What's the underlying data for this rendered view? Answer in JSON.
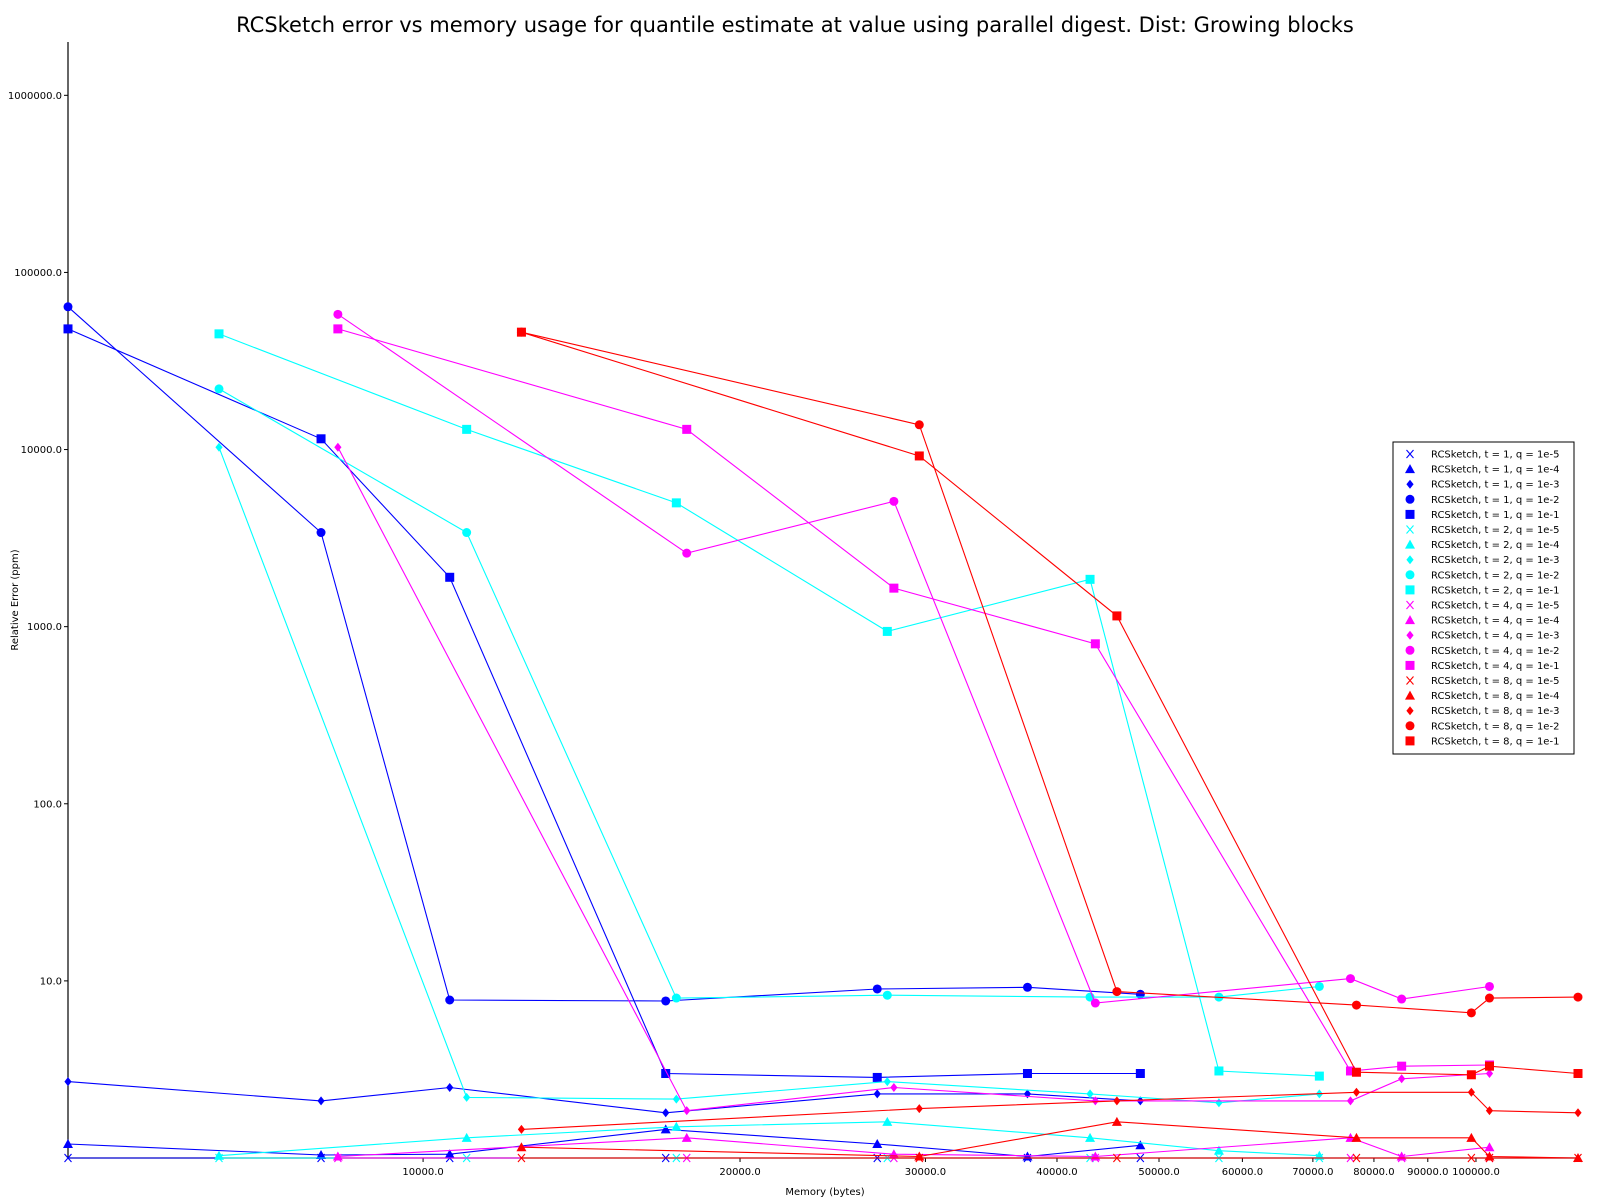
{
  "chart_data": {
    "type": "line",
    "title": "RCSketch error vs memory usage for quantile estimate at value using parallel digest. Dist: Growing blocks",
    "xlabel": "Memory (bytes)",
    "ylabel": "Relative Error (ppm)",
    "xscale": "log",
    "yscale": "log",
    "xlim": [
      4600,
      125000
    ],
    "ylim": [
      1.0,
      2000000
    ],
    "x_ticks": [
      {
        "value": 10000,
        "label": "10000.0"
      },
      {
        "value": 20000,
        "label": "20000.0"
      },
      {
        "value": 30000,
        "label": "30000.0"
      },
      {
        "value": 40000,
        "label": "40000.0"
      },
      {
        "value": 50000,
        "label": "50000.0"
      },
      {
        "value": 60000,
        "label": "60000.0"
      },
      {
        "value": 70000,
        "label": "70000.0"
      },
      {
        "value": 80000,
        "label": "80000.0"
      },
      {
        "value": 90000,
        "label": "90000.0"
      },
      {
        "value": 100000,
        "label": "100000.0"
      }
    ],
    "y_ticks": [
      {
        "value": 10,
        "label": "10.0"
      },
      {
        "value": 100,
        "label": "100.0"
      },
      {
        "value": 1000,
        "label": "1000.0"
      },
      {
        "value": 10000,
        "label": "10000.0"
      },
      {
        "value": 100000,
        "label": "100000.0"
      },
      {
        "value": 1000000,
        "label": "1000000.0"
      }
    ],
    "legend_position": "right",
    "series": [
      {
        "name": "RCSketch, t = 1, q = 1e-5",
        "color": "#0000ff",
        "marker": "x",
        "x": [
          4600,
          8000,
          10600,
          17000,
          27000,
          37500,
          48000
        ],
        "y": [
          1.0,
          1.0,
          1.0,
          1.0,
          1.0,
          1.0,
          1.0
        ]
      },
      {
        "name": "RCSketch, t = 1, q = 1e-4",
        "color": "#0000ff",
        "marker": "triangle",
        "x": [
          4600,
          8000,
          10600,
          17000,
          27000,
          37500,
          48000
        ],
        "y": [
          1.2,
          1.04,
          1.05,
          1.45,
          1.2,
          1.02,
          1.18
        ]
      },
      {
        "name": "RCSketch, t = 1, q = 1e-3",
        "color": "#0000ff",
        "marker": "diamond",
        "x": [
          4600,
          8000,
          10600,
          17000,
          27000,
          37500,
          48000
        ],
        "y": [
          2.7,
          2.1,
          2.5,
          1.8,
          2.3,
          2.3,
          2.1
        ]
      },
      {
        "name": "RCSketch, t = 1, q = 1e-2",
        "color": "#0000ff",
        "marker": "circle",
        "x": [
          4600,
          8000,
          10600,
          17000,
          27000,
          37500,
          48000
        ],
        "y": [
          64000,
          3400,
          7.8,
          7.7,
          9.0,
          9.2,
          8.4
        ]
      },
      {
        "name": "RCSketch, t = 1, q = 1e-1",
        "color": "#0000ff",
        "marker": "square",
        "x": [
          4600,
          8000,
          10600,
          17000,
          27000,
          37500,
          48000
        ],
        "y": [
          48000,
          11500,
          1900,
          3.0,
          2.85,
          3.0,
          3.0
        ]
      },
      {
        "name": "RCSketch, t = 2, q = 1e-5",
        "color": "#00ffff",
        "marker": "x",
        "x": [
          6400,
          11000,
          17400,
          27600,
          43000,
          57000,
          71000
        ],
        "y": [
          1.0,
          1.0,
          1.0,
          1.0,
          1.0,
          1.0,
          1.0
        ]
      },
      {
        "name": "RCSketch, t = 2, q = 1e-4",
        "color": "#00ffff",
        "marker": "triangle",
        "x": [
          6400,
          11000,
          17400,
          27600,
          43000,
          57000,
          71000
        ],
        "y": [
          1.03,
          1.3,
          1.5,
          1.6,
          1.3,
          1.1,
          1.03
        ]
      },
      {
        "name": "RCSketch, t = 2, q = 1e-3",
        "color": "#00ffff",
        "marker": "diamond",
        "x": [
          6400,
          11000,
          17400,
          27600,
          43000,
          57000,
          71000
        ],
        "y": [
          10300,
          2.2,
          2.15,
          2.7,
          2.3,
          2.05,
          2.3
        ]
      },
      {
        "name": "RCSketch, t = 2, q = 1e-2",
        "color": "#00ffff",
        "marker": "circle",
        "x": [
          6400,
          11000,
          17400,
          27600,
          43000,
          57000,
          71000
        ],
        "y": [
          22000,
          3400,
          8.0,
          8.3,
          8.1,
          8.1,
          9.3
        ]
      },
      {
        "name": "RCSketch, t = 2, q = 1e-1",
        "color": "#00ffff",
        "marker": "square",
        "x": [
          6400,
          11000,
          17400,
          27600,
          43000,
          57000,
          71000
        ],
        "y": [
          45000,
          13000,
          5000,
          940,
          1850,
          3.1,
          2.9
        ]
      },
      {
        "name": "RCSketch, t = 4, q = 1e-5",
        "color": "#ff00ff",
        "marker": "x",
        "x": [
          8300,
          17800,
          28000,
          43500,
          76000,
          85000,
          103000
        ],
        "y": [
          1.0,
          1.0,
          1.0,
          1.0,
          1.0,
          1.0,
          1.0
        ]
      },
      {
        "name": "RCSketch, t = 4, q = 1e-4",
        "color": "#ff00ff",
        "marker": "triangle",
        "x": [
          8300,
          17800,
          28000,
          43500,
          76000,
          85000,
          103000
        ],
        "y": [
          1.02,
          1.3,
          1.05,
          1.02,
          1.3,
          1.02,
          1.15
        ]
      },
      {
        "name": "RCSketch, t = 4, q = 1e-3",
        "color": "#ff00ff",
        "marker": "diamond",
        "x": [
          8300,
          17800,
          28000,
          43500,
          76000,
          85000,
          103000
        ],
        "y": [
          10300,
          1.85,
          2.5,
          2.1,
          2.1,
          2.8,
          3.0
        ]
      },
      {
        "name": "RCSketch, t = 4, q = 1e-2",
        "color": "#ff00ff",
        "marker": "circle",
        "x": [
          8300,
          17800,
          28000,
          43500,
          76000,
          85000,
          103000
        ],
        "y": [
          58000,
          2600,
          5100,
          7.5,
          10.3,
          7.9,
          9.3
        ]
      },
      {
        "name": "RCSketch, t = 4, q = 1e-1",
        "color": "#ff00ff",
        "marker": "square",
        "x": [
          8300,
          17800,
          28000,
          43500,
          76000,
          85000,
          103000
        ],
        "y": [
          48000,
          13000,
          1650,
          800,
          3.1,
          3.3,
          3.35
        ]
      },
      {
        "name": "RCSketch, t = 8, q = 1e-5",
        "color": "#ff0000",
        "marker": "x",
        "x": [
          12400,
          29600,
          45600,
          77000,
          99000,
          103000,
          125000
        ],
        "y": [
          1.0,
          1.0,
          1.0,
          1.0,
          1.0,
          1.0,
          1.0
        ]
      },
      {
        "name": "RCSketch, t = 8, q = 1e-4",
        "color": "#ff0000",
        "marker": "triangle",
        "x": [
          12400,
          29600,
          45600,
          77000,
          99000,
          103000,
          125000
        ],
        "y": [
          1.15,
          1.02,
          1.6,
          1.3,
          1.3,
          1.02,
          1.0
        ]
      },
      {
        "name": "RCSketch, t = 8, q = 1e-3",
        "color": "#ff0000",
        "marker": "diamond",
        "x": [
          12400,
          29600,
          45600,
          77000,
          99000,
          103000,
          125000
        ],
        "y": [
          1.45,
          1.9,
          2.1,
          2.35,
          2.35,
          1.85,
          1.8
        ]
      },
      {
        "name": "RCSketch, t = 8, q = 1e-2",
        "color": "#ff0000",
        "marker": "circle",
        "x": [
          12400,
          29600,
          45600,
          77000,
          99000,
          103000,
          125000
        ],
        "y": [
          46000,
          13800,
          8.7,
          7.3,
          6.6,
          8.0,
          8.1
        ]
      },
      {
        "name": "RCSketch, t = 8, q = 1e-1",
        "color": "#ff0000",
        "marker": "square",
        "x": [
          12400,
          29600,
          45600,
          77000,
          99000,
          103000,
          125000
        ],
        "y": [
          46000,
          9200,
          1150,
          3.05,
          2.95,
          3.3,
          3.0
        ]
      }
    ]
  }
}
